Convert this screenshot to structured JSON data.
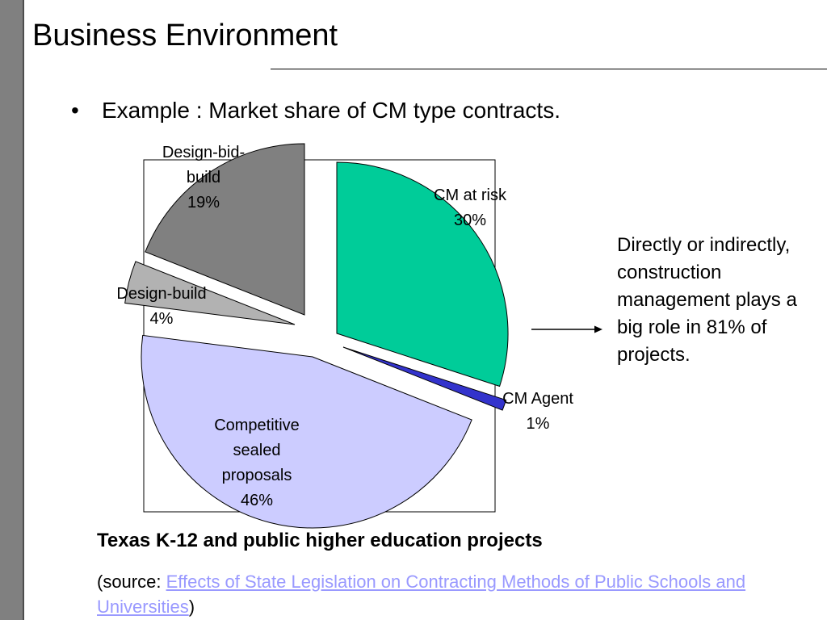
{
  "slide": {
    "title": "Business Environment",
    "bullet": "Example : Market share of CM type contracts.",
    "bullet_symbol": "•",
    "side_note": "Directly or indirectly, construction management plays a big role in 81% of projects.",
    "caption": "Texas K-12 and public higher education projects",
    "source_prefix": "(source: ",
    "source_link": "Effects of State Legislation on Contracting Methods of Public Schools and Universities",
    "source_suffix": ")"
  },
  "chart_data": {
    "type": "pie",
    "slices": [
      {
        "label_lines": [
          "CM at risk",
          "30%"
        ],
        "value": 30,
        "color": "#00cc99"
      },
      {
        "label_lines": [
          "CM Agent",
          "1%"
        ],
        "value": 1,
        "color": "#3333cc"
      },
      {
        "label_lines": [
          "Competitive",
          "sealed",
          "proposals",
          "46%"
        ],
        "value": 46,
        "color": "#ccccff"
      },
      {
        "label_lines": [
          "Design-build",
          "4%"
        ],
        "value": 4,
        "color": "#b2b2b2"
      },
      {
        "label_lines": [
          "Design-bid-",
          "build",
          "19%"
        ],
        "value": 19,
        "color": "#808080"
      }
    ]
  }
}
